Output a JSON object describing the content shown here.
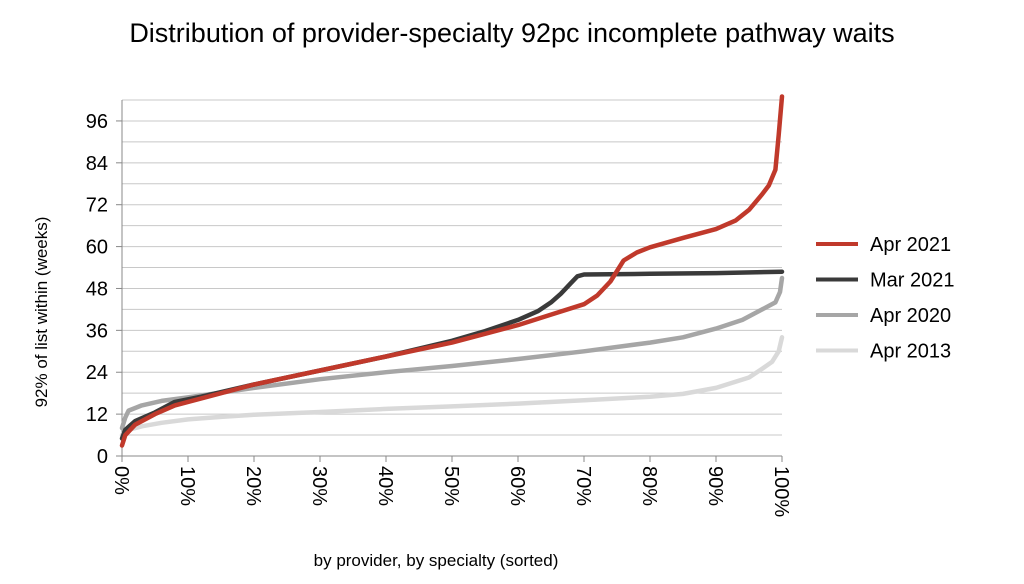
{
  "chart_data": {
    "type": "line",
    "title": "Distribution of provider-specialty 92pc incomplete pathway waits",
    "xlabel": "by provider, by specialty (sorted)",
    "ylabel": "92% of list within (weeks)",
    "xlim": [
      0,
      100
    ],
    "ylim": [
      0,
      102
    ],
    "x_ticks": [
      "0%",
      "10%",
      "20%",
      "30%",
      "40%",
      "50%",
      "60%",
      "70%",
      "80%",
      "90%",
      "100%"
    ],
    "y_ticks": [
      0,
      12,
      24,
      36,
      48,
      60,
      72,
      84,
      96
    ],
    "grid": true,
    "legend_position": "right",
    "series": [
      {
        "name": "Apr 2013",
        "color": "#d9d9d9",
        "points": [
          [
            0,
            6
          ],
          [
            1,
            7.5
          ],
          [
            3,
            8.5
          ],
          [
            6,
            9.5
          ],
          [
            10,
            10.5
          ],
          [
            15,
            11.2
          ],
          [
            20,
            11.8
          ],
          [
            30,
            12.6
          ],
          [
            40,
            13.5
          ],
          [
            50,
            14.2
          ],
          [
            60,
            15
          ],
          [
            70,
            16
          ],
          [
            80,
            17
          ],
          [
            85,
            17.8
          ],
          [
            90,
            19.5
          ],
          [
            95,
            22.5
          ],
          [
            97,
            25
          ],
          [
            98.5,
            27
          ],
          [
            99.5,
            30
          ],
          [
            100,
            34
          ]
        ]
      },
      {
        "name": "Apr 2020",
        "color": "#a6a6a6",
        "points": [
          [
            0,
            8
          ],
          [
            0.5,
            11
          ],
          [
            1,
            13
          ],
          [
            3,
            14.5
          ],
          [
            6,
            15.8
          ],
          [
            10,
            16.8
          ],
          [
            20,
            19.5
          ],
          [
            30,
            22
          ],
          [
            40,
            24
          ],
          [
            50,
            25.8
          ],
          [
            60,
            27.8
          ],
          [
            70,
            30
          ],
          [
            80,
            32.5
          ],
          [
            85,
            34
          ],
          [
            90,
            36.5
          ],
          [
            94,
            39
          ],
          [
            97,
            42
          ],
          [
            99,
            44
          ],
          [
            99.7,
            47
          ],
          [
            100,
            51
          ]
        ]
      },
      {
        "name": "Mar 2021",
        "color": "#3a3a3a",
        "points": [
          [
            0,
            5
          ],
          [
            0.5,
            7.5
          ],
          [
            2,
            10
          ],
          [
            5,
            12.5
          ],
          [
            8,
            15.5
          ],
          [
            12,
            17
          ],
          [
            20,
            20.5
          ],
          [
            30,
            24.5
          ],
          [
            40,
            28.5
          ],
          [
            50,
            33
          ],
          [
            55,
            35.8
          ],
          [
            60,
            39
          ],
          [
            63,
            41.5
          ],
          [
            65,
            44
          ],
          [
            66.5,
            46.5
          ],
          [
            68,
            49.5
          ],
          [
            69,
            51.5
          ],
          [
            70,
            52
          ],
          [
            80,
            52.2
          ],
          [
            90,
            52.4
          ],
          [
            100,
            52.8
          ]
        ]
      },
      {
        "name": "Apr 2021",
        "color": "#c0392b",
        "points": [
          [
            0,
            3
          ],
          [
            0.5,
            6
          ],
          [
            2,
            9
          ],
          [
            5,
            12
          ],
          [
            8,
            14.5
          ],
          [
            12,
            16.5
          ],
          [
            20,
            20.5
          ],
          [
            30,
            24.5
          ],
          [
            40,
            28.5
          ],
          [
            50,
            32.5
          ],
          [
            55,
            35
          ],
          [
            60,
            37.5
          ],
          [
            65,
            40.5
          ],
          [
            70,
            43.5
          ],
          [
            72,
            46
          ],
          [
            74,
            50
          ],
          [
            75,
            53
          ],
          [
            76,
            56
          ],
          [
            78,
            58.3
          ],
          [
            80,
            59.8
          ],
          [
            85,
            62.5
          ],
          [
            90,
            65
          ],
          [
            93,
            67.5
          ],
          [
            95,
            70.5
          ],
          [
            97,
            75
          ],
          [
            98,
            77.5
          ],
          [
            99,
            82
          ],
          [
            99.5,
            92
          ],
          [
            100,
            103
          ]
        ]
      }
    ]
  }
}
